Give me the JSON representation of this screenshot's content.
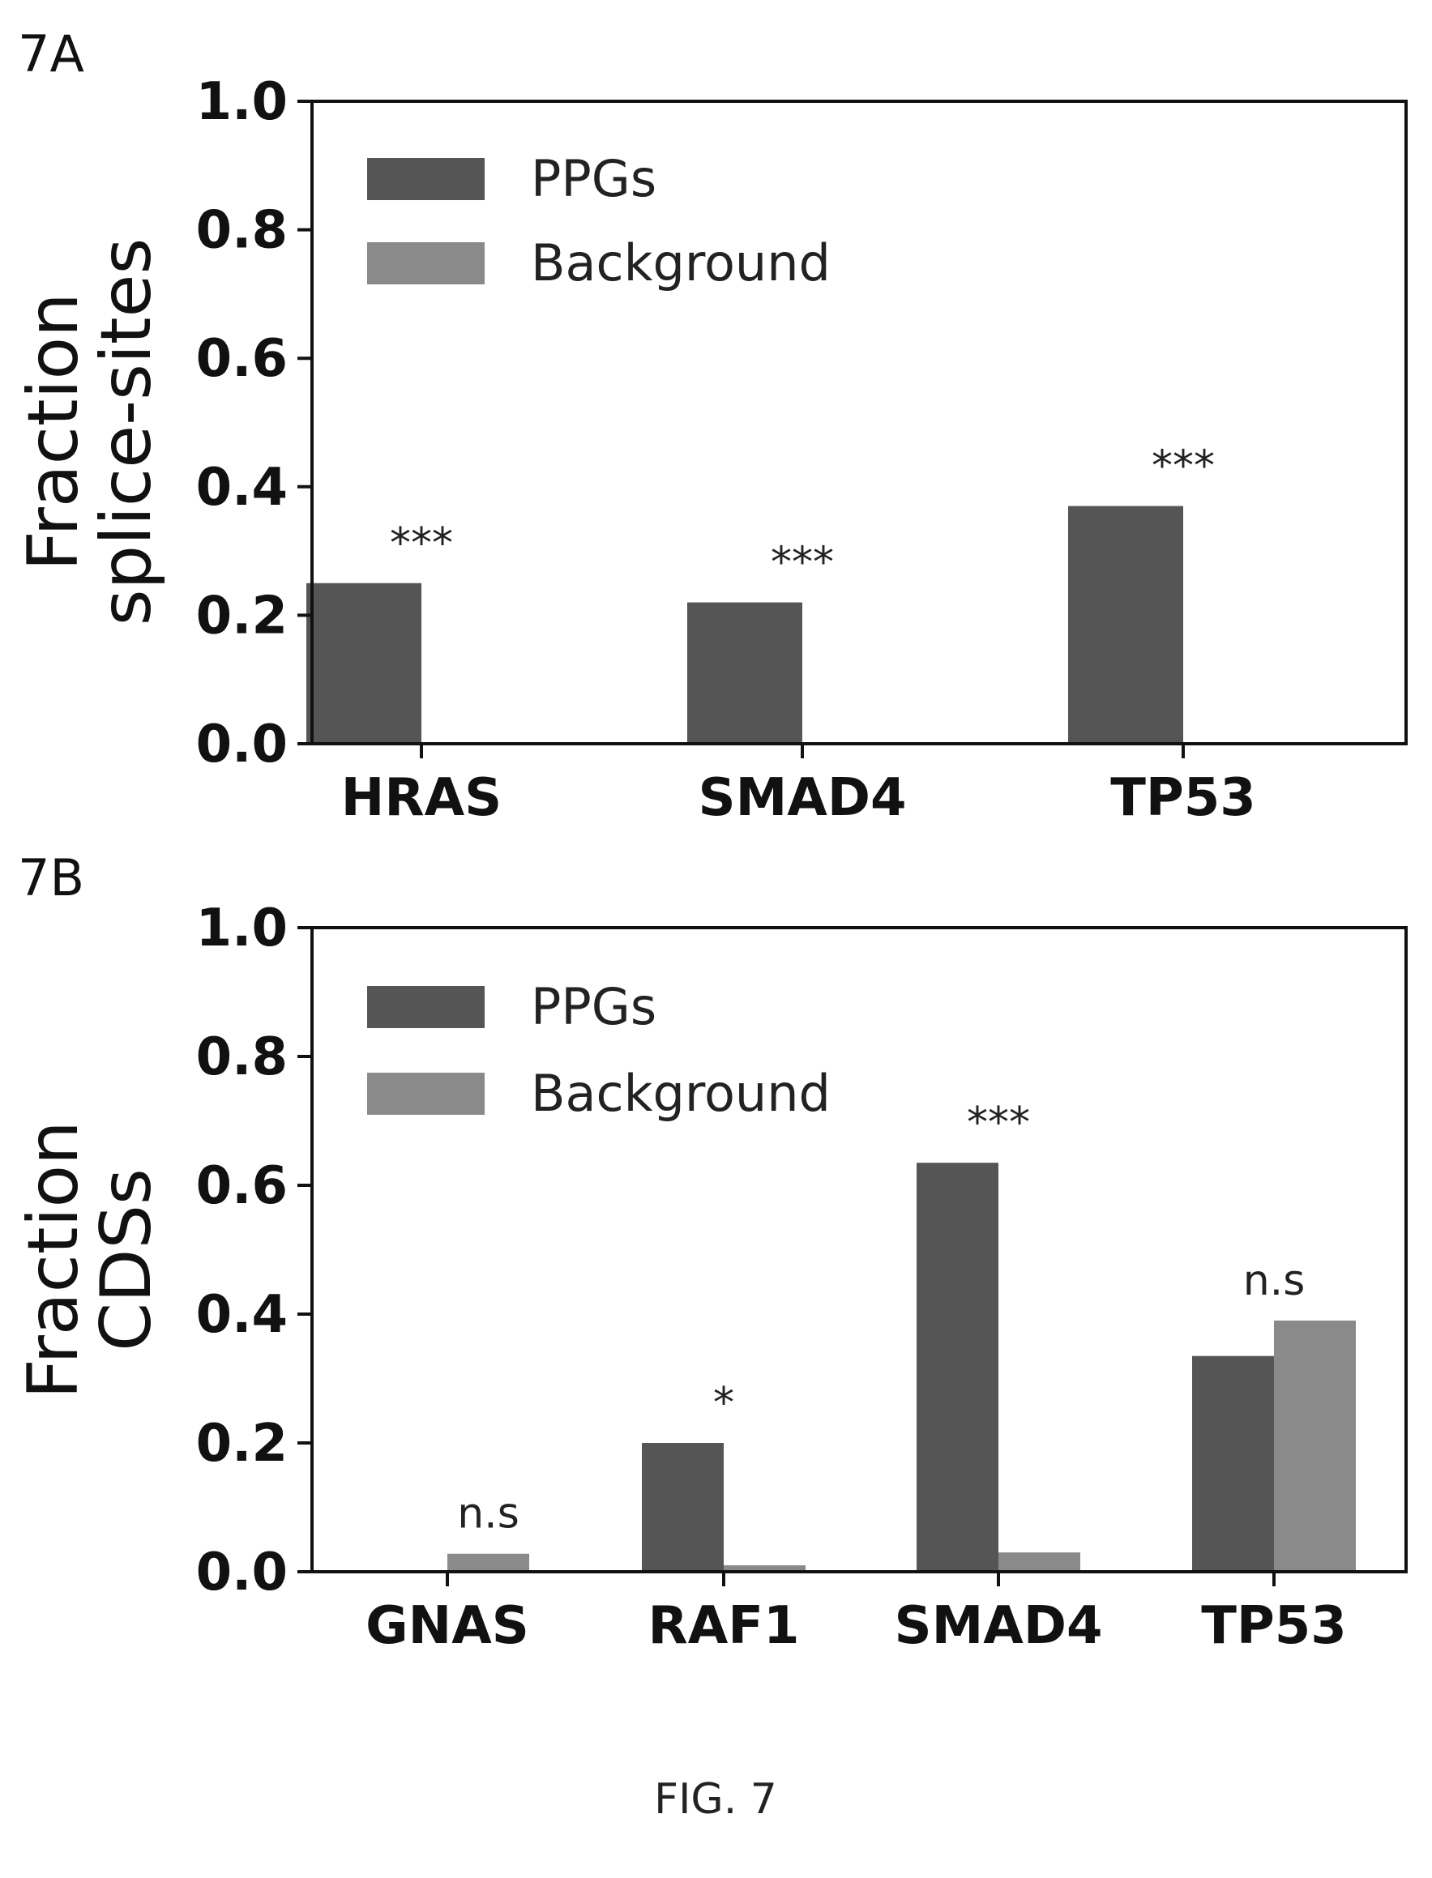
{
  "figure": {
    "caption": "FIG. 7"
  },
  "colors": {
    "ppgs": "#555555",
    "background": "#8a8a8a",
    "axis": "#111111"
  },
  "chart_data": [
    {
      "panel_label": "7A",
      "type": "bar",
      "ylabel_line1": "Fraction",
      "ylabel_line2": "splice-sites",
      "ylim": [
        0,
        1.0
      ],
      "yticks": [
        0.0,
        0.2,
        0.4,
        0.6,
        0.8,
        1.0
      ],
      "ytick_labels": [
        "0.0",
        "0.2",
        "0.4",
        "0.6",
        "0.8",
        "1.0"
      ],
      "categories": [
        "HRAS",
        "SMAD4",
        "TP53"
      ],
      "series": [
        {
          "name": "PPGs",
          "values": [
            0.25,
            0.22,
            0.37
          ]
        },
        {
          "name": "Background",
          "values": [
            0,
            0,
            0
          ]
        }
      ],
      "annotations": [
        "***",
        "***",
        "***"
      ],
      "legend_position": "top-left"
    },
    {
      "panel_label": "7B",
      "type": "bar",
      "ylabel_line1": "Fraction",
      "ylabel_line2": "CDSs",
      "ylim": [
        0,
        1.0
      ],
      "yticks": [
        0.0,
        0.2,
        0.4,
        0.6,
        0.8,
        1.0
      ],
      "ytick_labels": [
        "0.0",
        "0.2",
        "0.4",
        "0.6",
        "0.8",
        "1.0"
      ],
      "categories": [
        "GNAS",
        "RAF1",
        "SMAD4",
        "TP53"
      ],
      "series": [
        {
          "name": "PPGs",
          "values": [
            0,
            0.2,
            0.635,
            0.335
          ]
        },
        {
          "name": "Background",
          "values": [
            0.028,
            0.01,
            0.03,
            0.39
          ]
        }
      ],
      "annotations": [
        "n.s",
        "*",
        "***",
        "n.s"
      ],
      "legend_position": "top-left"
    }
  ]
}
